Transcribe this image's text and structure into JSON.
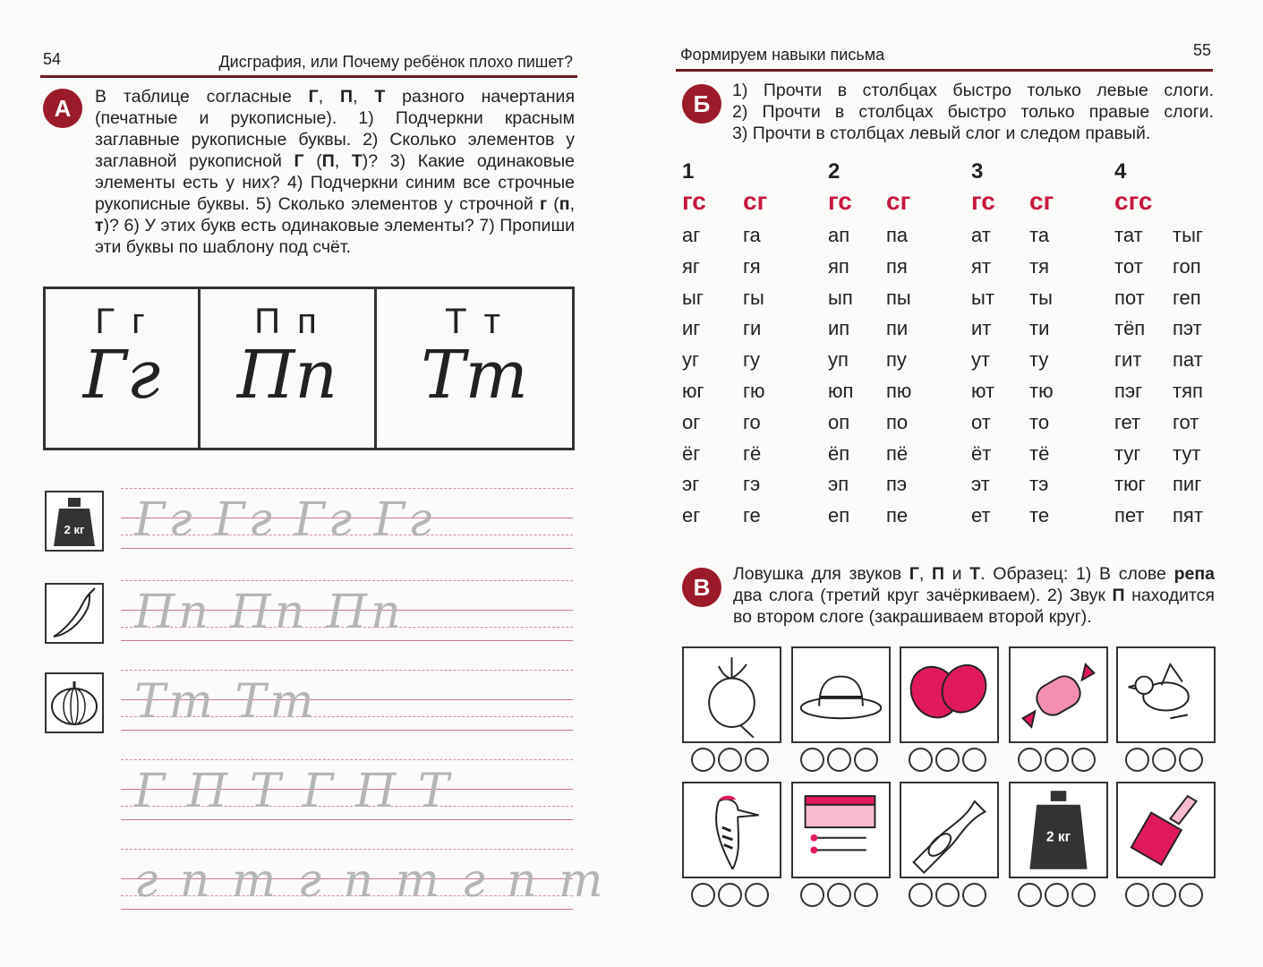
{
  "left_page": {
    "page_number": "54",
    "running_title": "Дисграфия, или Почему ребёнок плохо пишет?",
    "section_a": {
      "badge": "А",
      "text_html": "В таблице согласные <b>Г</b>, <b>П</b>, <b>Т</b> разного начертания (печатные и рукописные). 1) Подчеркни красным заглавные рукописные буквы. 2) Сколько элементов у заглавной рукописной <b>Г</b> (<b>П</b>, <b>Т</b>)? 3) Какие одинаковые элементы есть у них? 4) Подчеркни синим все строчные рукописные буквы. 5) Сколько элементов у строчной <b>г</b> (<b>п</b>, <b>т</b>)? 6) У этих букв есть одинаковые элементы? 7) Пропиши эти буквы по шаблону под счёт."
    },
    "letter_table": [
      {
        "printed": "Г г",
        "cursive": "Гг"
      },
      {
        "printed": "П п",
        "cursive": "Пп"
      },
      {
        "printed": "Т т",
        "cursive": "Тт"
      }
    ],
    "tracing_rows": [
      {
        "icon": "weight-icon",
        "icon_text": "2 кг",
        "trace": "Гг Гг Гг Гг"
      },
      {
        "icon": "chili-pepper-icon",
        "trace": "Пп Пп Пп"
      },
      {
        "icon": "pumpkin-icon",
        "trace": "Тт Тт"
      },
      {
        "trace": "Г П Т Г П Т"
      },
      {
        "trace": "г п т г п т г п т"
      }
    ]
  },
  "right_page": {
    "page_number": "55",
    "running_title": "Формируем навыки письма",
    "section_b": {
      "badge": "Б",
      "lines": [
        "1) Прочти в столбцах быстро только левые слоги.",
        "2) Прочти в столбцах быстро только правые слоги.",
        "3) Прочти в столбцах левый слог и следом правый."
      ]
    },
    "syllable_table": [
      {
        "number": "1",
        "heads": [
          "гс",
          "сг"
        ],
        "left": [
          "аг",
          "яг",
          "ыг",
          "иг",
          "уг",
          "юг",
          "ог",
          "ёг",
          "эг",
          "ег"
        ],
        "right": [
          "га",
          "гя",
          "гы",
          "ги",
          "гу",
          "гю",
          "го",
          "гё",
          "гэ",
          "ге"
        ]
      },
      {
        "number": "2",
        "heads": [
          "гс",
          "сг"
        ],
        "left": [
          "ап",
          "яп",
          "ып",
          "ип",
          "уп",
          "юп",
          "оп",
          "ёп",
          "эп",
          "еп"
        ],
        "right": [
          "па",
          "пя",
          "пы",
          "пи",
          "пу",
          "пю",
          "по",
          "пё",
          "пэ",
          "пе"
        ]
      },
      {
        "number": "3",
        "heads": [
          "гс",
          "сг"
        ],
        "left": [
          "ат",
          "ят",
          "ыт",
          "ит",
          "ут",
          "ют",
          "от",
          "ёт",
          "эт",
          "ет"
        ],
        "right": [
          "та",
          "тя",
          "ты",
          "ти",
          "ту",
          "тю",
          "то",
          "тё",
          "тэ",
          "те"
        ]
      },
      {
        "number": "4",
        "heads": [
          "сгс"
        ],
        "left": [
          "тат",
          "тот",
          "пот",
          "тёп",
          "гит",
          "пэг",
          "гет",
          "туг",
          "тюг",
          "пет"
        ],
        "right": [
          "тыг",
          "гоп",
          "геп",
          "пэт",
          "пат",
          "тяп",
          "гот",
          "тут",
          "пиг",
          "пят"
        ]
      }
    ],
    "section_v": {
      "badge": "В",
      "text_html": "Ловушка для звуков <b>Г</b>, <b>П</b> и <b>Т</b>. Образец: 1) В слове <b>репа</b> два слога (третий круг зачёркиваем). 2) Звук <b>П</b> находится во втором слоге (закрашиваем второй круг)."
    },
    "pictures": [
      [
        "beet-icon",
        "hat-icon",
        "mittens-icon",
        "candy-icon",
        "bird-icon"
      ],
      [
        "woodpecker-icon",
        "matches-icon",
        "trumpet-icon",
        "weight-icon",
        "brush-icon"
      ]
    ],
    "weight_label": "2 кг",
    "accent_color": "#c8173e",
    "badge_color": "#9b1b2a"
  }
}
